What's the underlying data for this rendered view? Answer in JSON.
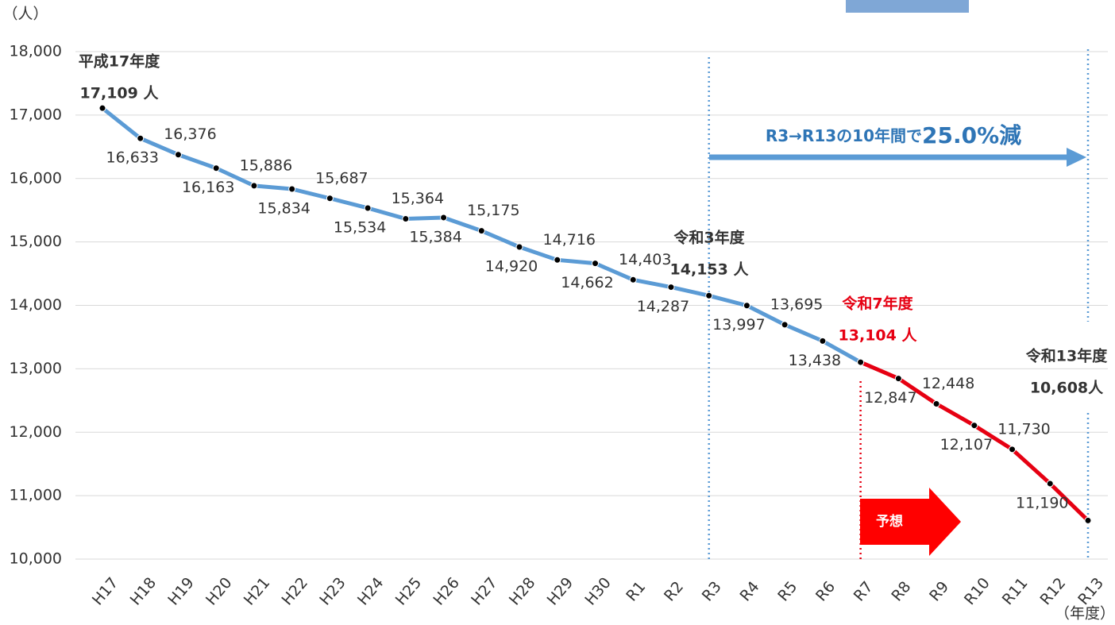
{
  "chart_data": {
    "type": "line",
    "y_unit": "（人）",
    "x_unit": "（年度）",
    "categories": [
      "H17",
      "H18",
      "H19",
      "H20",
      "H21",
      "H22",
      "H23",
      "H24",
      "H25",
      "H26",
      "H27",
      "H28",
      "H29",
      "H30",
      "R1",
      "R2",
      "R3",
      "R4",
      "R5",
      "R6",
      "R7",
      "R8",
      "R9",
      "R10",
      "R11",
      "R12",
      "R13"
    ],
    "series": [
      {
        "color": "#5b9bd5",
        "values": [
          17109,
          16633,
          16376,
          16163,
          15886,
          15834,
          15687,
          15534,
          15364,
          15384,
          15175,
          14920,
          14716,
          14662,
          14403,
          14287,
          14153,
          13997,
          13695,
          13438,
          13104,
          null,
          null,
          null,
          null,
          null,
          null
        ],
        "value_labels": [
          "17,109 人",
          "16,633",
          "16,376",
          "16,163",
          "15,886",
          "15,834",
          "15,687",
          "15,534",
          "15,364",
          "15,384",
          "15,175",
          "14,920",
          "14,716",
          "14,662",
          "14,403",
          "14,287",
          "14,153 人",
          "13,997",
          "13,695",
          "13,438",
          "13,104 人",
          null,
          null,
          null,
          null,
          null,
          null
        ]
      },
      {
        "color": "#e60012",
        "values": [
          null,
          null,
          null,
          null,
          null,
          null,
          null,
          null,
          null,
          null,
          null,
          null,
          null,
          null,
          null,
          null,
          null,
          null,
          null,
          null,
          13104,
          12847,
          12448,
          12107,
          11730,
          11190,
          10608
        ],
        "value_labels": [
          null,
          null,
          null,
          null,
          null,
          null,
          null,
          null,
          null,
          null,
          null,
          null,
          null,
          null,
          null,
          null,
          null,
          null,
          null,
          null,
          null,
          "12,847",
          "12,448",
          "12,107",
          "11,730",
          "11,190",
          "10,608人"
        ]
      }
    ],
    "annotations": [
      "平成17年度",
      "令和3年度",
      "令和7年度",
      "令和13年度"
    ],
    "arrow_text": "R3→R13の10年間で",
    "arrow_emphasis": "25.0%減",
    "forecast_label": "予想",
    "ylim": [
      10000,
      18000
    ],
    "yticks": [
      {
        "value": 10000,
        "label": "10,000"
      },
      {
        "value": 11000,
        "label": "11,000"
      },
      {
        "value": 12000,
        "label": "12,000"
      },
      {
        "value": 13000,
        "label": "13,000"
      },
      {
        "value": 14000,
        "label": "14,000"
      },
      {
        "value": 15000,
        "label": "15,000"
      },
      {
        "value": 16000,
        "label": "16,000"
      },
      {
        "value": 17000,
        "label": "17,000"
      },
      {
        "value": 18000,
        "label": "18,000"
      }
    ],
    "grid": true
  }
}
